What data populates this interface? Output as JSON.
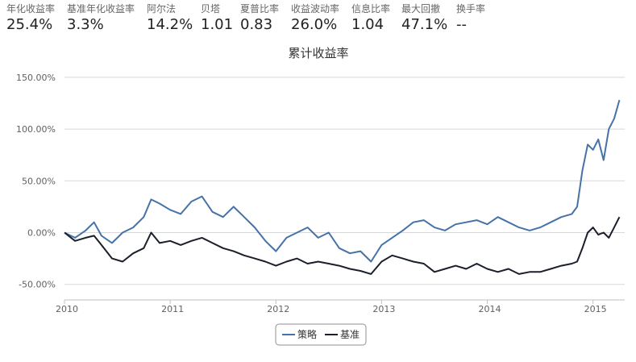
{
  "stats": [
    {
      "label": "年化收益率",
      "value": "25.4%"
    },
    {
      "label": "基准年化收益率",
      "value": "3.3%"
    },
    {
      "label": "阿尔法",
      "value": "14.2%"
    },
    {
      "label": "贝塔",
      "value": "1.01"
    },
    {
      "label": "夏普比率",
      "value": "0.83"
    },
    {
      "label": "收益波动率",
      "value": "26.0%"
    },
    {
      "label": "信息比率",
      "value": "1.04"
    },
    {
      "label": "最大回撤",
      "value": "47.1%"
    },
    {
      "label": "换手率",
      "value": "--"
    }
  ],
  "chart_data": {
    "type": "line",
    "title": "累计收益率",
    "xlabel": "",
    "ylabel": "",
    "xlim": [
      2010.0,
      2015.3
    ],
    "ylim": [
      -65,
      160
    ],
    "yticks": [
      -50,
      0,
      50,
      100,
      150
    ],
    "ytick_labels": [
      "-50.00%",
      "0.00%",
      "50.00%",
      "100.00%",
      "150.00%"
    ],
    "xticks": [
      2010,
      2011,
      2012,
      2013,
      2014,
      2015
    ],
    "xtick_labels": [
      "2010",
      "2011",
      "2012",
      "2013",
      "2014",
      "2015"
    ],
    "grid": "horizontal",
    "legend": "bottom-center",
    "series": [
      {
        "name": "策略",
        "color": "#4572a7",
        "x": [
          2010.0,
          2010.1,
          2010.2,
          2010.28,
          2010.35,
          2010.45,
          2010.55,
          2010.65,
          2010.75,
          2010.82,
          2010.9,
          2011.0,
          2011.1,
          2011.2,
          2011.3,
          2011.4,
          2011.5,
          2011.6,
          2011.7,
          2011.8,
          2011.9,
          2012.0,
          2012.1,
          2012.2,
          2012.3,
          2012.4,
          2012.5,
          2012.6,
          2012.7,
          2012.8,
          2012.9,
          2013.0,
          2013.1,
          2013.2,
          2013.3,
          2013.4,
          2013.5,
          2013.6,
          2013.7,
          2013.8,
          2013.9,
          2014.0,
          2014.1,
          2014.2,
          2014.3,
          2014.4,
          2014.5,
          2014.6,
          2014.7,
          2014.8,
          2014.85,
          2014.9,
          2014.95,
          2015.0,
          2015.05,
          2015.1,
          2015.15,
          2015.2,
          2015.25
        ],
        "values": [
          0,
          -5,
          2,
          10,
          -3,
          -10,
          0,
          5,
          15,
          32,
          28,
          22,
          18,
          30,
          35,
          20,
          15,
          25,
          15,
          5,
          -8,
          -18,
          -5,
          0,
          5,
          -5,
          0,
          -15,
          -20,
          -18,
          -28,
          -12,
          -5,
          2,
          10,
          12,
          5,
          2,
          8,
          10,
          12,
          8,
          15,
          10,
          5,
          2,
          5,
          10,
          15,
          18,
          25,
          60,
          85,
          80,
          90,
          70,
          100,
          110,
          128
        ]
      },
      {
        "name": "基准",
        "color": "#1a1f2b",
        "x": [
          2010.0,
          2010.1,
          2010.2,
          2010.28,
          2010.35,
          2010.45,
          2010.55,
          2010.65,
          2010.75,
          2010.82,
          2010.9,
          2011.0,
          2011.1,
          2011.2,
          2011.3,
          2011.4,
          2011.5,
          2011.6,
          2011.7,
          2011.8,
          2011.9,
          2012.0,
          2012.1,
          2012.2,
          2012.3,
          2012.4,
          2012.5,
          2012.6,
          2012.7,
          2012.8,
          2012.9,
          2013.0,
          2013.1,
          2013.2,
          2013.3,
          2013.4,
          2013.5,
          2013.6,
          2013.7,
          2013.8,
          2013.9,
          2014.0,
          2014.1,
          2014.2,
          2014.3,
          2014.4,
          2014.5,
          2014.6,
          2014.7,
          2014.8,
          2014.85,
          2014.9,
          2014.95,
          2015.0,
          2015.05,
          2015.1,
          2015.15,
          2015.2,
          2015.25
        ],
        "values": [
          0,
          -8,
          -5,
          -3,
          -12,
          -25,
          -28,
          -20,
          -15,
          0,
          -10,
          -8,
          -12,
          -8,
          -5,
          -10,
          -15,
          -18,
          -22,
          -25,
          -28,
          -32,
          -28,
          -25,
          -30,
          -28,
          -30,
          -32,
          -35,
          -37,
          -40,
          -28,
          -22,
          -25,
          -28,
          -30,
          -38,
          -35,
          -32,
          -35,
          -30,
          -35,
          -38,
          -35,
          -40,
          -38,
          -38,
          -35,
          -32,
          -30,
          -28,
          -15,
          0,
          5,
          -2,
          0,
          -5,
          5,
          15
        ]
      }
    ]
  }
}
